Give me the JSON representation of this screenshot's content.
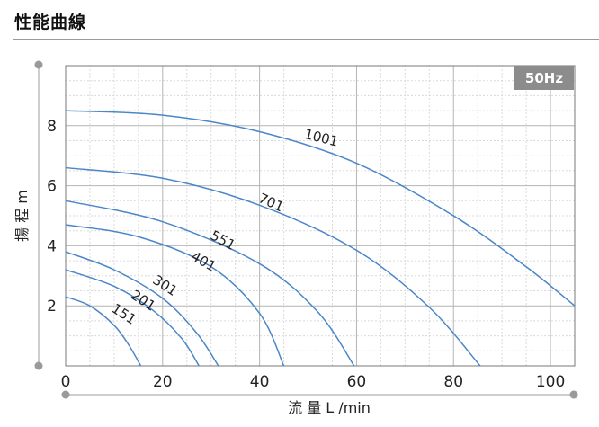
{
  "page": {
    "title": "性能曲線"
  },
  "chart_data": {
    "type": "line",
    "badge": "50Hz",
    "xlabel": "流 量 L /min",
    "ylabel": "揚 程 m",
    "xlim": [
      0,
      105
    ],
    "ylim": [
      0,
      10
    ],
    "xticks": [
      0,
      20,
      40,
      60,
      80,
      100
    ],
    "yticks": [
      2,
      4,
      6,
      8
    ],
    "grid": true,
    "line_color": "#4a86c8",
    "series": [
      {
        "name": "151",
        "x": [
          0,
          5,
          10,
          13,
          15.5
        ],
        "y": [
          2.3,
          2.0,
          1.35,
          0.7,
          0
        ]
      },
      {
        "name": "201",
        "x": [
          0,
          10,
          18,
          24,
          27.5
        ],
        "y": [
          3.2,
          2.65,
          1.85,
          0.9,
          0
        ]
      },
      {
        "name": "301",
        "x": [
          0,
          10,
          20,
          27,
          31.5
        ],
        "y": [
          3.8,
          3.2,
          2.25,
          1.1,
          0
        ]
      },
      {
        "name": "401",
        "x": [
          0,
          15,
          30,
          40,
          45
        ],
        "y": [
          4.7,
          4.3,
          3.3,
          1.75,
          0
        ]
      },
      {
        "name": "551",
        "x": [
          0,
          20,
          40,
          52,
          59.5
        ],
        "y": [
          5.5,
          4.8,
          3.4,
          1.8,
          0
        ]
      },
      {
        "name": "701",
        "x": [
          0,
          20,
          40,
          60,
          75,
          85.5
        ],
        "y": [
          6.6,
          6.25,
          5.35,
          3.85,
          1.95,
          0
        ]
      },
      {
        "name": "1001",
        "x": [
          0,
          20,
          40,
          60,
          80,
          95,
          105
        ],
        "y": [
          8.5,
          8.35,
          7.8,
          6.75,
          5.0,
          3.3,
          2.0
        ]
      }
    ],
    "label_positions": [
      {
        "name": "151",
        "x": 11.5,
        "y": 1.6,
        "angle": 33
      },
      {
        "name": "201",
        "x": 15.5,
        "y": 2.05,
        "angle": 33
      },
      {
        "name": "301",
        "x": 20.0,
        "y": 2.55,
        "angle": 33
      },
      {
        "name": "401",
        "x": 28.0,
        "y": 3.35,
        "angle": 30
      },
      {
        "name": "551",
        "x": 32.0,
        "y": 4.05,
        "angle": 28
      },
      {
        "name": "701",
        "x": 42.0,
        "y": 5.3,
        "angle": 24
      },
      {
        "name": "1001",
        "x": 52.5,
        "y": 7.45,
        "angle": 14
      }
    ]
  }
}
